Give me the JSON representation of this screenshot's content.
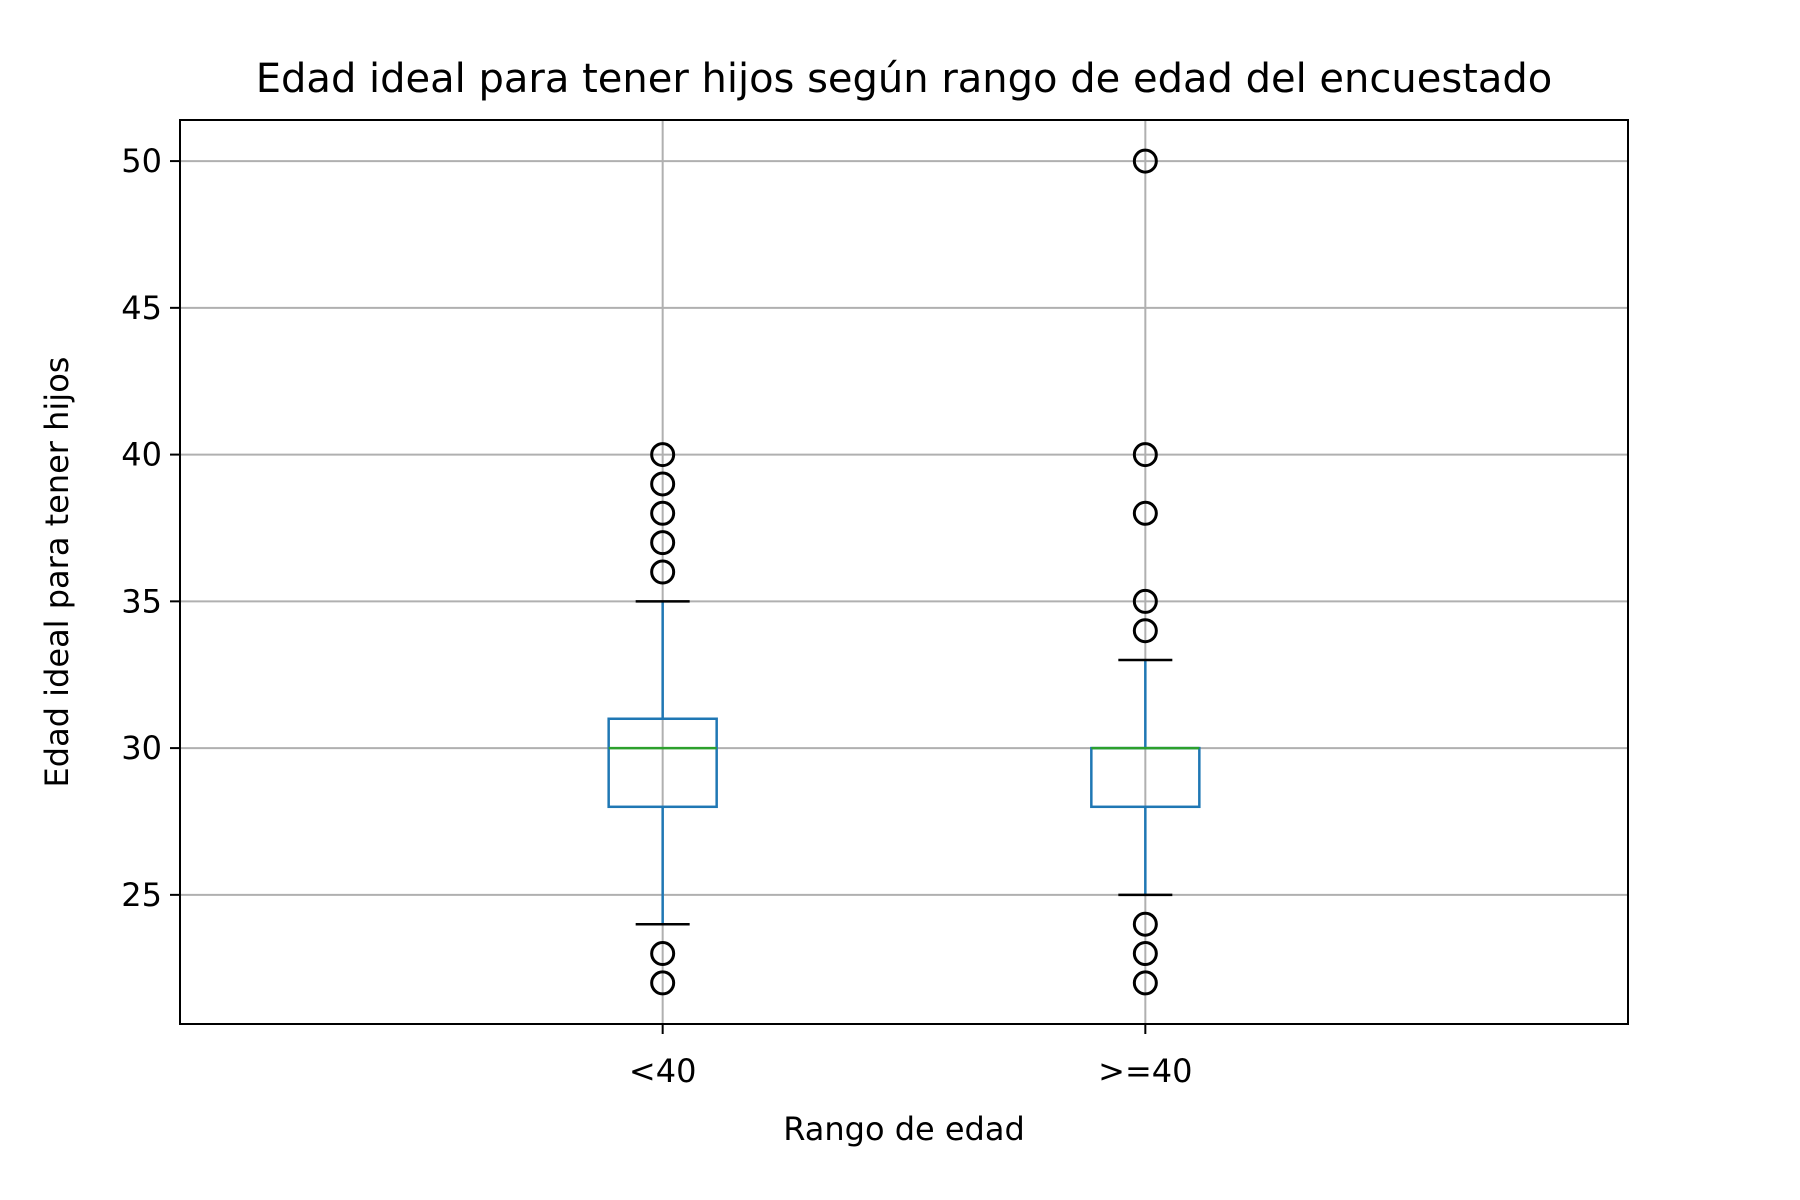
{
  "chart_data": {
    "type": "boxplot",
    "title": "Edad ideal para tener hijos según rango de edad del encuestado",
    "xlabel": "Rango de edad",
    "ylabel": "Edad ideal para tener hijos",
    "categories": [
      "<40",
      ">=40"
    ],
    "ylim": [
      20.6,
      51.4
    ],
    "yticks": [
      25,
      30,
      35,
      40,
      45,
      50
    ],
    "grid": true,
    "colors": {
      "box": "#1f77b4",
      "median": "#2ca02c",
      "caps": "#000000",
      "outliers": "#000000",
      "grid": "#b0b0b0"
    },
    "boxes": [
      {
        "category": "<40",
        "whisker_low": 24,
        "q1": 28,
        "median": 30,
        "q3": 31,
        "whisker_high": 35,
        "outliers": [
          22,
          23,
          36,
          37,
          38,
          39,
          40
        ]
      },
      {
        "category": ">=40",
        "whisker_low": 25,
        "q1": 28,
        "median": 30,
        "q3": 30,
        "whisker_high": 33,
        "outliers": [
          22,
          23,
          24,
          34,
          35,
          38,
          40,
          50
        ]
      }
    ]
  }
}
